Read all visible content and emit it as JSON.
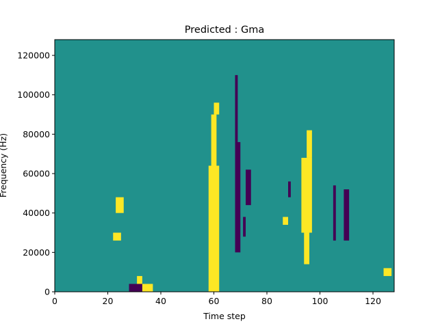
{
  "chart_data": {
    "type": "heatmap",
    "title": "Predicted : Gma",
    "xlabel": "Time step",
    "ylabel": "Frequency (Hz)",
    "xlim": [
      0,
      128
    ],
    "ylim": [
      0,
      128000
    ],
    "x_ticks": [
      0,
      20,
      40,
      60,
      80,
      100,
      120
    ],
    "x_tick_labels": [
      "0",
      "20",
      "40",
      "60",
      "80",
      "100",
      "120"
    ],
    "y_ticks": [
      0,
      20000,
      40000,
      60000,
      80000,
      100000,
      120000
    ],
    "y_tick_labels": [
      "0",
      "20000",
      "40000",
      "60000",
      "80000",
      "100000",
      "120000"
    ],
    "n_time_steps": 128,
    "n_freq_bins": 64,
    "colormap": {
      "low": "#440154",
      "mid": "#21918c",
      "high": "#fde725"
    },
    "background_value": "mid",
    "cells": {
      "high": [
        {
          "t": [
            58,
            62
          ],
          "f": [
            0,
            64000
          ]
        },
        {
          "t": [
            59,
            61
          ],
          "f": [
            64000,
            90000
          ]
        },
        {
          "t": [
            60,
            62
          ],
          "f": [
            90000,
            96000
          ]
        },
        {
          "t": [
            93,
            97
          ],
          "f": [
            30000,
            68000
          ]
        },
        {
          "t": [
            94,
            96
          ],
          "f": [
            14000,
            30000
          ]
        },
        {
          "t": [
            95,
            97
          ],
          "f": [
            68000,
            82000
          ]
        },
        {
          "t": [
            23,
            26
          ],
          "f": [
            40000,
            48000
          ]
        },
        {
          "t": [
            22,
            25
          ],
          "f": [
            26000,
            30000
          ]
        },
        {
          "t": [
            33,
            37
          ],
          "f": [
            0,
            4000
          ]
        },
        {
          "t": [
            124,
            127
          ],
          "f": [
            8000,
            12000
          ]
        },
        {
          "t": [
            86,
            88
          ],
          "f": [
            34000,
            38000
          ]
        },
        {
          "t": [
            31,
            33
          ],
          "f": [
            0,
            8000
          ]
        }
      ],
      "low": [
        {
          "t": [
            28,
            33
          ],
          "f": [
            0,
            4000
          ]
        },
        {
          "t": [
            68,
            70
          ],
          "f": [
            20000,
            76000
          ]
        },
        {
          "t": [
            68,
            69
          ],
          "f": [
            76000,
            110000
          ]
        },
        {
          "t": [
            109,
            111
          ],
          "f": [
            26000,
            52000
          ]
        },
        {
          "t": [
            105,
            106
          ],
          "f": [
            26000,
            54000
          ]
        },
        {
          "t": [
            72,
            74
          ],
          "f": [
            44000,
            62000
          ]
        },
        {
          "t": [
            88,
            89
          ],
          "f": [
            48000,
            56000
          ]
        },
        {
          "t": [
            71,
            72
          ],
          "f": [
            28000,
            38000
          ]
        }
      ]
    }
  }
}
